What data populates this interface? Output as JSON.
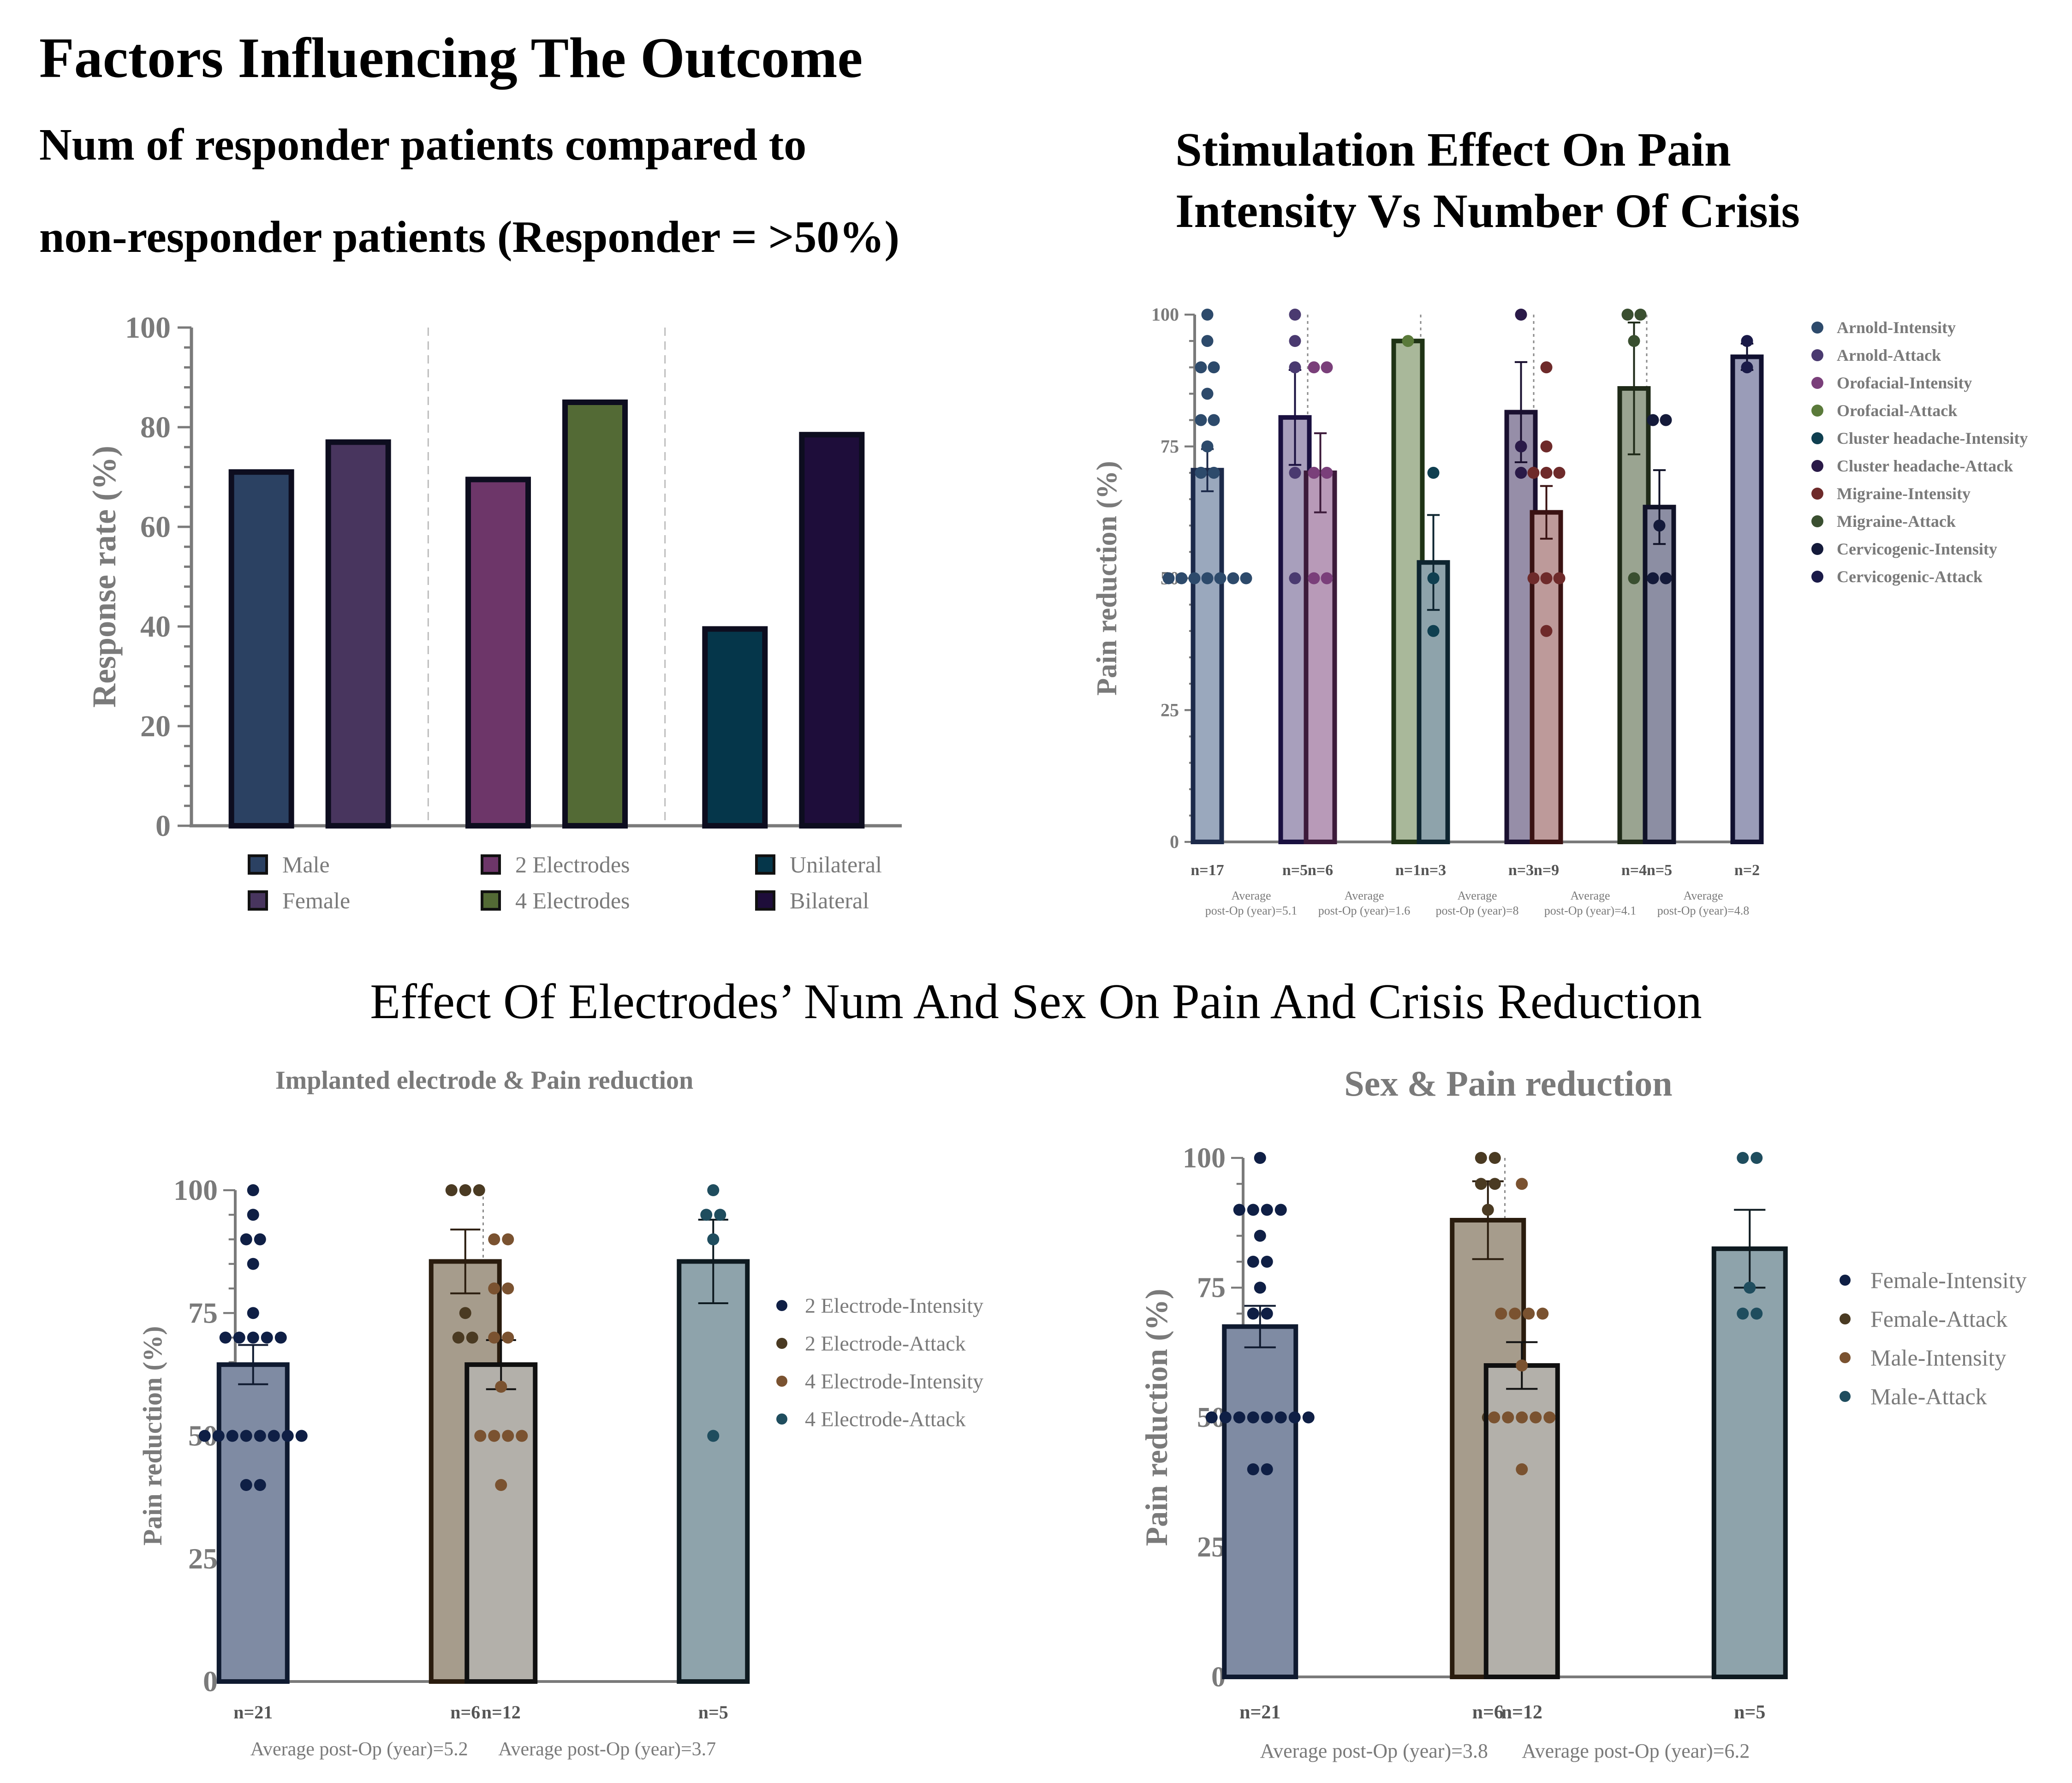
{
  "titles": {
    "main": "Factors Influencing The Outcome",
    "sub_line1": "Num of responder patients compared to",
    "sub_line2": "non-responder patients (Responder = >50%)",
    "right_line1": "Stimulation Effect On Pain",
    "right_line2": "Intensity Vs Number Of Crisis",
    "middle": "Effect Of Electrodes’ Num And Sex On Pain And Crisis Reduction"
  },
  "chart_data": [
    {
      "id": "response",
      "type": "bar",
      "title": "",
      "xlabel": "",
      "ylabel": "Response rate (%)",
      "ylim": [
        0,
        100
      ],
      "yticks": [
        0,
        20,
        40,
        60,
        80,
        100
      ],
      "groups": [
        {
          "bars": [
            {
              "label": "Male",
              "value": 71,
              "color": "#2b4162"
            },
            {
              "label": "Female",
              "value": 77,
              "color": "#48355e"
            }
          ]
        },
        {
          "bars": [
            {
              "label": "2 Electrodes",
              "value": 69.5,
              "color": "#6d3669"
            },
            {
              "label": "4 Electrodes",
              "value": 85,
              "color": "#536a35"
            }
          ]
        },
        {
          "bars": [
            {
              "label": "Unilateral",
              "value": 39.5,
              "color": "#05364a"
            },
            {
              "label": "Bilateral",
              "value": 78.5,
              "color": "#1e0d3a"
            }
          ]
        }
      ],
      "legend": [
        {
          "label": "Male",
          "color": "#2b4162"
        },
        {
          "label": "Female",
          "color": "#48355e"
        },
        {
          "label": "2 Electrodes",
          "color": "#6d3669"
        },
        {
          "label": "4 Electrodes",
          "color": "#536a35"
        },
        {
          "label": "Unilateral",
          "color": "#05364a"
        },
        {
          "label": "Bilateral",
          "color": "#1e0d3a"
        }
      ],
      "legend_position": "bottom"
    },
    {
      "id": "stimulation",
      "type": "bar",
      "title": "",
      "ylabel": "Pain reduction (%)",
      "ylim": [
        0,
        100
      ],
      "yticks": [
        0,
        25,
        50,
        75,
        100
      ],
      "groups": [
        {
          "footer": "Average post-Op (year)=5.1",
          "bars": [
            {
              "label": "n=17",
              "value": 70.5,
              "err": 4,
              "color": "#9aa8bd",
              "edge": "#1c2a4a",
              "dot": "#2d4a6b",
              "points": [
                100,
                95,
                90,
                90,
                85,
                80,
                80,
                75,
                70,
                70,
                50,
                50,
                50,
                50,
                50,
                50,
                50
              ]
            },
            {
              "label": "n=5",
              "value": 80.5,
              "err": 9,
              "color": "#a89fbc",
              "edge": "#1a1040",
              "dot": "#4a3a70",
              "points": [
                100,
                95,
                90,
                70,
                50
              ]
            }
          ]
        },
        {
          "footer": "Average post-Op (year)=1.6",
          "bars": [
            {
              "label": "n=6",
              "value": 70,
              "err": 7.5,
              "color": "#b89ab8",
              "edge": "#3c1a3a",
              "dot": "#7a3f7a",
              "points": [
                90,
                90,
                70,
                70,
                50,
                50
              ]
            },
            {
              "label": "n=1",
              "value": 95,
              "err": 0,
              "color": "#a9b89a",
              "edge": "#1f3315",
              "dot": "#5a7a3a",
              "points": [
                95
              ]
            }
          ]
        },
        {
          "footer": "Average post-Op (year)=8",
          "bars": [
            {
              "label": "n=3",
              "value": 53,
              "err": 9,
              "color": "#8ea3ab",
              "edge": "#0e2530",
              "dot": "#0f3f50",
              "points": [
                70,
                50,
                40
              ]
            },
            {
              "label": "n=3",
              "value": 81.5,
              "err": 9.5,
              "color": "#968ea8",
              "edge": "#1a1030",
              "dot": "#2a1a48",
              "points": [
                100,
                75,
                70
              ]
            }
          ]
        },
        {
          "footer": "Average post-Op (year)=4.1",
          "bars": [
            {
              "label": "n=9",
              "value": 62.5,
              "err": 5,
              "color": "#bd9a9a",
              "edge": "#3a1212",
              "dot": "#6e2a2a",
              "points": [
                90,
                75,
                70,
                70,
                70,
                50,
                50,
                50,
                40
              ]
            },
            {
              "label": "n=4",
              "value": 86,
              "err": 12.5,
              "color": "#9aa491",
              "edge": "#1f2a18",
              "dot": "#3a4f30",
              "points": [
                100,
                100,
                95,
                50
              ]
            }
          ]
        },
        {
          "footer": "Average post-Op (year)=4.8",
          "bars": [
            {
              "label": "n=5",
              "value": 63.5,
              "err": 7,
              "color": "#8c8ea3",
              "edge": "#101228",
              "dot": "#141a3a",
              "points": [
                80,
                80,
                60,
                50,
                50
              ]
            },
            {
              "label": "n=2",
              "value": 92,
              "err": 2.5,
              "color": "#9a9cb8",
              "edge": "#101030",
              "dot": "#1a1a48",
              "points": [
                95,
                90
              ]
            }
          ]
        }
      ],
      "legend": [
        {
          "label": "Arnold-Intensity",
          "color": "#2d4a6b"
        },
        {
          "label": "Arnold-Attack",
          "color": "#4a3a70"
        },
        {
          "label": "Orofacial-Intensity",
          "color": "#7a3f7a"
        },
        {
          "label": "Orofacial-Attack",
          "color": "#5a7a3a"
        },
        {
          "label": "Cluster headache-Intensity",
          "color": "#0f3f50"
        },
        {
          "label": "Cluster headache-Attack",
          "color": "#2a1a48"
        },
        {
          "label": "Migraine-Intensity",
          "color": "#6e2a2a"
        },
        {
          "label": "Migraine-Attack",
          "color": "#3a4f30"
        },
        {
          "label": "Cervicogenic-Intensity",
          "color": "#141a3a"
        },
        {
          "label": "Cervicogenic-Attack",
          "color": "#1a1a48"
        }
      ],
      "legend_position": "right"
    },
    {
      "id": "electrode",
      "type": "bar",
      "title": "Implanted electrode & Pain reduction",
      "ylabel": "Pain reduction (%)",
      "ylim": [
        0,
        100
      ],
      "yticks": [
        0,
        25,
        50,
        75,
        100
      ],
      "groups": [
        {
          "footer": "Average post-Op (year)=5.2",
          "bars": [
            {
              "label": "n=21",
              "value": 64.5,
              "err": 4,
              "color": "#7f8ba3",
              "edge": "#0f1a30",
              "dot": "#0f1f45",
              "points": [
                100,
                95,
                90,
                90,
                85,
                75,
                70,
                70,
                70,
                70,
                70,
                50,
                50,
                50,
                50,
                50,
                50,
                50,
                50,
                40,
                40
              ]
            },
            {
              "label": "n=6",
              "value": 85.5,
              "err": 6.5,
              "color": "#a69c8c",
              "edge": "#2a1c0e",
              "dot": "#4a3a22",
              "points": [
                100,
                100,
                100,
                75,
                70,
                70
              ]
            }
          ]
        },
        {
          "footer": "Average post-Op (year)=3.7",
          "bars": [
            {
              "label": "n=12",
              "value": 64.5,
              "err": 5,
              "color": "#b3b0aa",
              "edge": "#101010",
              "dot": "#7a5230",
              "points": [
                90,
                90,
                80,
                80,
                70,
                70,
                60,
                50,
                50,
                50,
                50,
                40
              ]
            },
            {
              "label": "n=5",
              "value": 85.5,
              "err": 8.5,
              "color": "#8ea3ab",
              "edge": "#0e1a20",
              "dot": "#1f4d5e",
              "points": [
                100,
                95,
                95,
                90,
                50
              ]
            }
          ]
        }
      ],
      "legend": [
        {
          "label": "2 Electrode-Intensity",
          "color": "#0f1f45"
        },
        {
          "label": "2 Electrode-Attack",
          "color": "#4a3a22"
        },
        {
          "label": "4 Electrode-Intensity",
          "color": "#7a5230"
        },
        {
          "label": "4 Electrode-Attack",
          "color": "#1f4d5e"
        }
      ],
      "legend_position": "right"
    },
    {
      "id": "sex",
      "type": "bar",
      "title": "Sex & Pain reduction",
      "ylabel": "Pain reduction (%)",
      "ylim": [
        0,
        100
      ],
      "yticks": [
        0,
        25,
        50,
        75,
        100
      ],
      "groups": [
        {
          "footer": "Average post-Op (year)=3.8",
          "bars": [
            {
              "label": "n=21",
              "value": 67.5,
              "err": 4,
              "color": "#7f8ba3",
              "edge": "#0f1a30",
              "dot": "#0f1f45",
              "points": [
                100,
                90,
                90,
                90,
                90,
                85,
                80,
                80,
                75,
                70,
                70,
                50,
                50,
                50,
                50,
                50,
                50,
                50,
                50,
                40,
                40
              ]
            },
            {
              "label": "n=6",
              "value": 88,
              "err": 7.5,
              "color": "#a69c8c",
              "edge": "#2a1c0e",
              "dot": "#4a3a22",
              "points": [
                100,
                100,
                95,
                95,
                90,
                50
              ]
            }
          ]
        },
        {
          "footer": "Average post-Op (year)=6.2",
          "bars": [
            {
              "label": "n=12",
              "value": 60,
              "err": 4.5,
              "color": "#b3b0aa",
              "edge": "#101010",
              "dot": "#7a5230",
              "points": [
                95,
                70,
                70,
                70,
                70,
                60,
                50,
                50,
                50,
                50,
                50,
                40
              ]
            },
            {
              "label": "n=5",
              "value": 82.5,
              "err": 7.5,
              "color": "#8ea3ab",
              "edge": "#0e1a20",
              "dot": "#1f4d5e",
              "points": [
                100,
                100,
                75,
                70,
                70
              ]
            }
          ]
        }
      ],
      "legend": [
        {
          "label": "Female-Intensity",
          "color": "#0f1f45"
        },
        {
          "label": "Female-Attack",
          "color": "#4a3a22"
        },
        {
          "label": "Male-Intensity",
          "color": "#7a5230"
        },
        {
          "label": "Male-Attack",
          "color": "#1f4d5e"
        }
      ],
      "legend_position": "right"
    }
  ]
}
